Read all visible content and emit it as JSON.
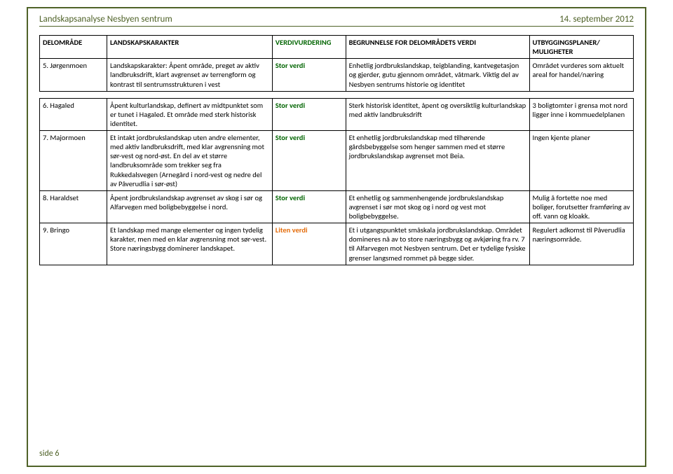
{
  "header": {
    "left": "Landskapsanalyse Nesbyen sentrum",
    "right": "14. september 2012"
  },
  "footer": "side 6",
  "table": {
    "columns": [
      "DELOMRÅDE",
      "LANDSKAPSKARAKTER",
      "VERDIVURDERING",
      "BEGRUNNELSE FOR DELOMRÅDETS VERDI",
      "UTBYGGINGSPLANER/ MULIGHETER"
    ],
    "group1": [
      {
        "a": "5. Jørgenmoen",
        "b": "Landskapskarakter: Åpent område, preget av aktiv landbruksdrift, klart avgrenset av terrengform og kontrast til sentrumsstrukturen i vest",
        "c": "Stor verdi",
        "c_class": "verdi-green",
        "d": "Enhetlig jordbrukslandskap, teigblanding, kantvegetasjon og gjerder, gutu gjennom området, våtmark. Viktig del av Nesbyen sentrums historie og identitet",
        "e": "Området vurderes som aktuelt areal for handel/næring"
      }
    ],
    "group2": [
      {
        "a": "6. Hagaled",
        "b": "Åpent kulturlandskap, definert av midtpunktet som er tunet i Hagaled. Et område med sterk historisk identitet.",
        "c": "Stor verdi",
        "c_class": "verdi-green",
        "d": "Sterk historisk identitet, åpent og oversiktlig kulturlandskap med aktiv landbruksdrift",
        "e": "3 boligtomter i grensa mot nord ligger inne i kommuedelplanen"
      },
      {
        "a": "7. Majormoen",
        "b": "Et intakt jordbrukslandskap uten andre elementer, med aktiv landbruksdrift, med klar avgrensning mot sør-vest og nord-øst. En del av et større landbruksområde som trekker seg fra Rukkedalsvegen (Arnegård i nord-vest og nedre del av Påverudlia i sør-øst)",
        "c": "Stor verdi",
        "c_class": "verdi-green",
        "d": "Et enhetlig jordbrukslandskap med tilhørende gårdsbebyggelse som henger sammen med et større jordbrukslandskap avgrenset mot Beia.",
        "e": "Ingen kjente planer"
      },
      {
        "a": "8. Haraldset",
        "b": "Åpent jordbrukslandskap avgrenset av skog i sør og Alfarvegen med boligbebyggelse i nord.",
        "c": "Stor verdi",
        "c_class": "verdi-green",
        "d": "Et enhetlig og sammenhengende jordbrukslandskap avgrenset i sør mot skog og i nord og vest mot boligbebyggelse.",
        "e": "Mulig å fortette noe med boliger, forutsetter framføring av off. vann og kloakk."
      },
      {
        "a": "9. Bringo",
        "b": "Et landskap med mange elementer og ingen tydelig karakter, men med en klar avgrensning mot sør-vest. Store næringsbygg dominerer landskapet.",
        "c": "Liten verdi",
        "c_class": "verdi-orange",
        "d": "Et i utgangspunktet småskala jordbrukslandskap. Området domineres nå av to store næringsbygg og avkjøring fra rv. 7 til Alfarvegen mot Nesbyen sentrum. Det er tydelige fysiske grenser langsmed rommet på begge sider.",
        "e": "Regulert adkomst til Påverudlia næringsområde."
      }
    ]
  }
}
